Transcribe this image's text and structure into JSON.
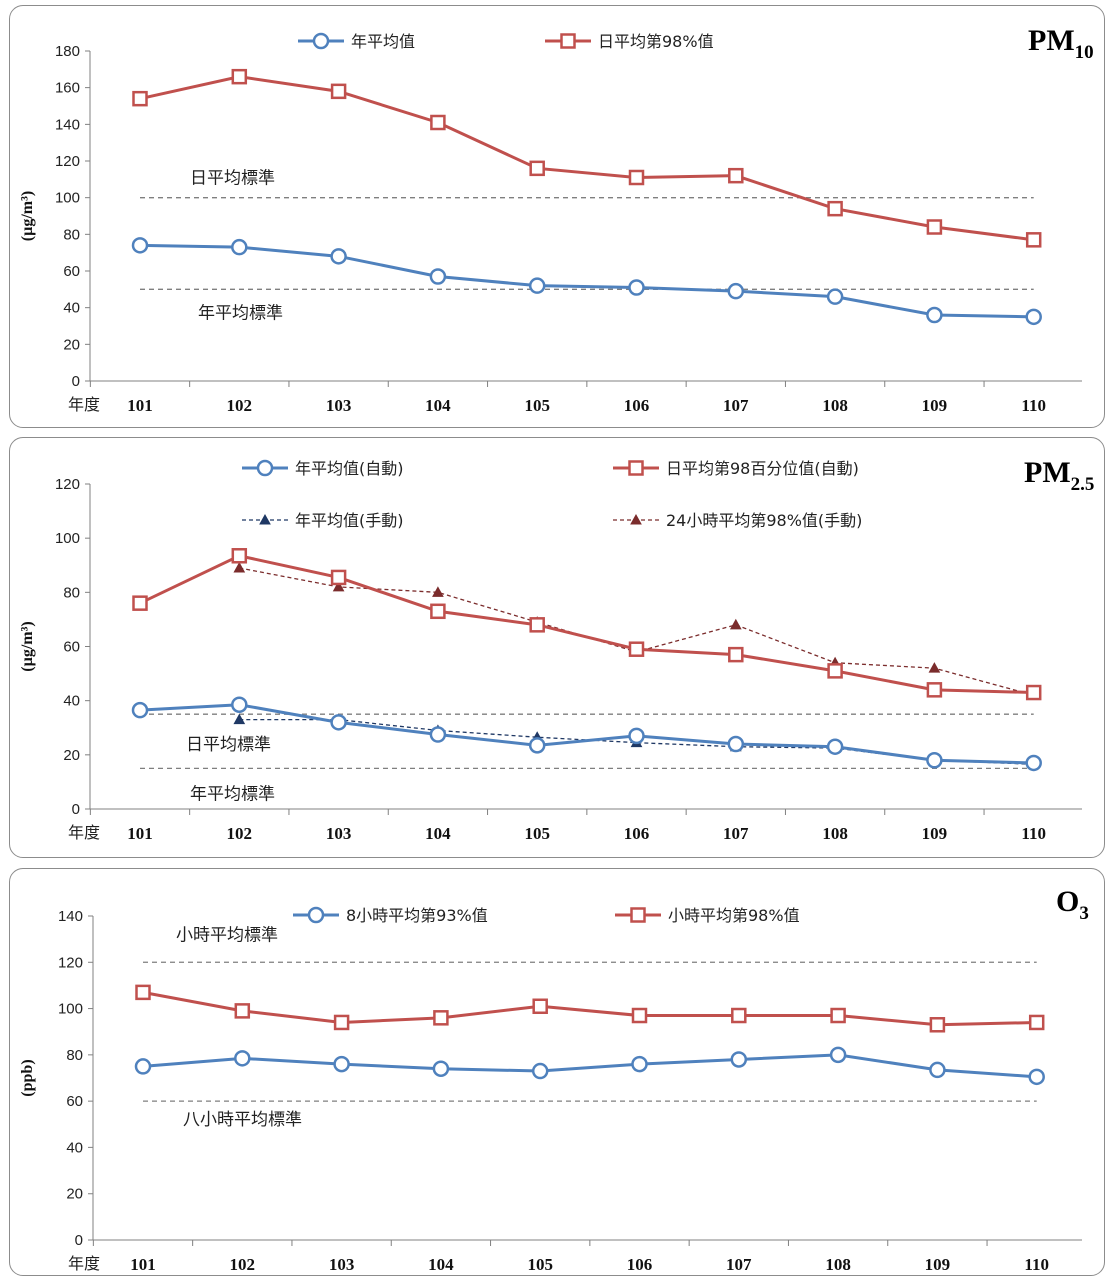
{
  "chart_data": [
    {
      "type": "line",
      "title": "PM",
      "title_sub": "10",
      "ylabel": "(µg/m³)",
      "x_unit_label": "年度",
      "categories": [
        "101",
        "102",
        "103",
        "104",
        "105",
        "106",
        "107",
        "108",
        "109",
        "110"
      ],
      "ylim": [
        0,
        180
      ],
      "yticks": [
        0,
        20,
        40,
        60,
        80,
        100,
        120,
        140,
        160,
        180
      ],
      "grid": false,
      "legend_position": "top",
      "series": [
        {
          "name": "年平均值",
          "color": "#4f81bd",
          "marker": "circle",
          "dashed": false,
          "values": [
            74,
            73,
            68,
            57,
            52,
            51,
            49,
            46,
            36,
            35
          ]
        },
        {
          "name": "日平均第98%值",
          "color": "#c0504d",
          "marker": "square",
          "dashed": false,
          "values": [
            154,
            166,
            158,
            141,
            116,
            111,
            112,
            94,
            84,
            77
          ]
        }
      ],
      "reference_lines": [
        {
          "label": "日平均標準",
          "value": 100
        },
        {
          "label": "年平均標準",
          "value": 50
        }
      ]
    },
    {
      "type": "line",
      "title": "PM",
      "title_sub": "2.5",
      "ylabel": "(µg/m³)",
      "x_unit_label": "年度",
      "categories": [
        "101",
        "102",
        "103",
        "104",
        "105",
        "106",
        "107",
        "108",
        "109",
        "110"
      ],
      "ylim": [
        0,
        120
      ],
      "yticks": [
        0,
        20,
        40,
        60,
        80,
        100,
        120
      ],
      "grid": false,
      "legend_position": "top",
      "series": [
        {
          "name": "年平均值(自動)",
          "color": "#4f81bd",
          "marker": "circle",
          "dashed": false,
          "values": [
            36.5,
            38.5,
            32,
            27.5,
            23.5,
            27,
            24,
            23,
            18,
            17
          ]
        },
        {
          "name": "日平均第98百分位值(自動)",
          "color": "#c0504d",
          "marker": "square",
          "dashed": false,
          "values": [
            76,
            93.5,
            85.5,
            73,
            68,
            59,
            57,
            51,
            44,
            43
          ]
        },
        {
          "name": "年平均值(手動)",
          "color": "#1f3864",
          "marker": "triangle",
          "dashed": true,
          "values": [
            null,
            33,
            33,
            29,
            26.5,
            24.5,
            23,
            22.5,
            18,
            16.5
          ]
        },
        {
          "name": "24小時平均第98%值(手動)",
          "color": "#7b2c2c",
          "marker": "triangle",
          "dashed": true,
          "values": [
            null,
            89,
            82,
            80,
            69,
            58,
            68,
            54,
            52,
            42
          ]
        }
      ],
      "reference_lines": [
        {
          "label": "日平均標準",
          "value": 35
        },
        {
          "label": "年平均標準",
          "value": 15
        }
      ]
    },
    {
      "type": "line",
      "title": "O",
      "title_sub": "3",
      "ylabel": "(ppb)",
      "x_unit_label": "年度",
      "categories": [
        "101",
        "102",
        "103",
        "104",
        "105",
        "106",
        "107",
        "108",
        "109",
        "110"
      ],
      "ylim": [
        0,
        140
      ],
      "yticks": [
        0,
        20,
        40,
        60,
        80,
        100,
        120,
        140
      ],
      "grid": false,
      "legend_position": "top",
      "series": [
        {
          "name": "8小時平均第93%值",
          "color": "#4f81bd",
          "marker": "circle",
          "dashed": false,
          "values": [
            75,
            78.5,
            76,
            74,
            73,
            76,
            78,
            80,
            73.5,
            70.5
          ]
        },
        {
          "name": "小時平均第98%值",
          "color": "#c0504d",
          "marker": "square",
          "dashed": false,
          "values": [
            107,
            99,
            94,
            96,
            101,
            97,
            97,
            97,
            93,
            94
          ]
        }
      ],
      "reference_lines": [
        {
          "label": "小時平均標準",
          "value": 120
        },
        {
          "label": "八小時平均標準",
          "value": 60
        }
      ]
    }
  ]
}
